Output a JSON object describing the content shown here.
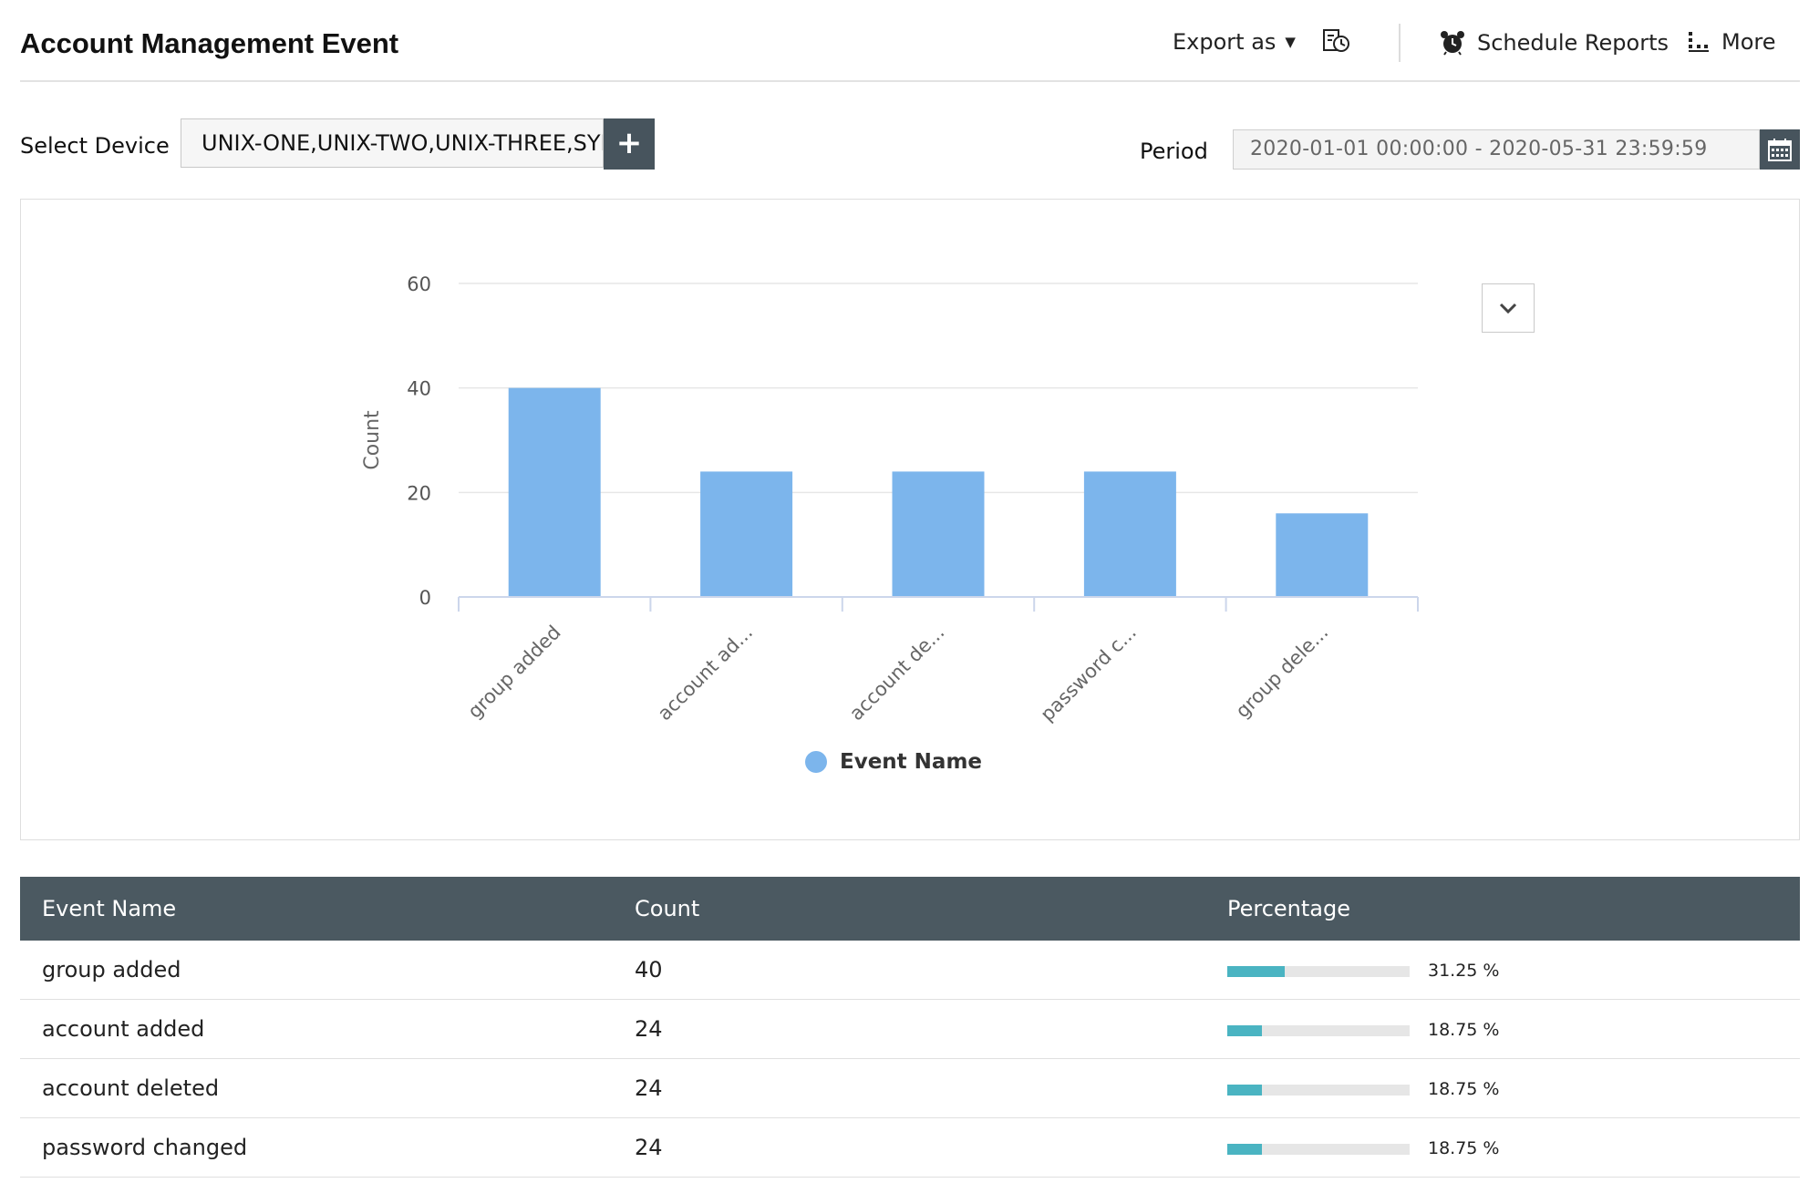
{
  "header": {
    "title": "Account Management Event",
    "export_label": "Export as",
    "schedule_label": "Schedule Reports",
    "more_label": "More"
  },
  "filters": {
    "device_label": "Select Device",
    "device_value": "UNIX-ONE,UNIX-TWO,UNIX-THREE,SYN",
    "period_label": "Period",
    "period_value": "2020-01-01 00:00:00 - 2020-05-31 23:59:59"
  },
  "chart_data": {
    "type": "bar",
    "categories": [
      "group added",
      "account ad...",
      "account de...",
      "password c...",
      "group dele..."
    ],
    "values": [
      40,
      24,
      24,
      24,
      16
    ],
    "title": "",
    "xlabel": "",
    "ylabel": "Count",
    "ylim": [
      0,
      60
    ],
    "yticks": [
      0,
      20,
      40,
      60
    ],
    "legend": "Event Name",
    "legend_position": "bottom",
    "grid": true,
    "bar_color": "#7cb5ec"
  },
  "table": {
    "columns": [
      "Event Name",
      "Count",
      "Percentage"
    ],
    "rows": [
      {
        "name": "group added",
        "count": "40",
        "percent_label": "31.25 %",
        "percent": 31.25
      },
      {
        "name": "account added",
        "count": "24",
        "percent_label": "18.75 %",
        "percent": 18.75
      },
      {
        "name": "account deleted",
        "count": "24",
        "percent_label": "18.75 %",
        "percent": 18.75
      },
      {
        "name": "password changed",
        "count": "24",
        "percent_label": "18.75 %",
        "percent": 18.75
      }
    ]
  },
  "colors": {
    "accent": "#47545d",
    "bar": "#7cb5ec",
    "progress": "#4ab4c2"
  },
  "icons": {
    "export": "caret-down-icon",
    "history": "report-history-icon",
    "schedule": "alarm-clock-icon",
    "more": "more-menu-icon",
    "add": "plus-icon",
    "calendar": "calendar-icon",
    "chart_menu": "chevron-down-icon"
  }
}
